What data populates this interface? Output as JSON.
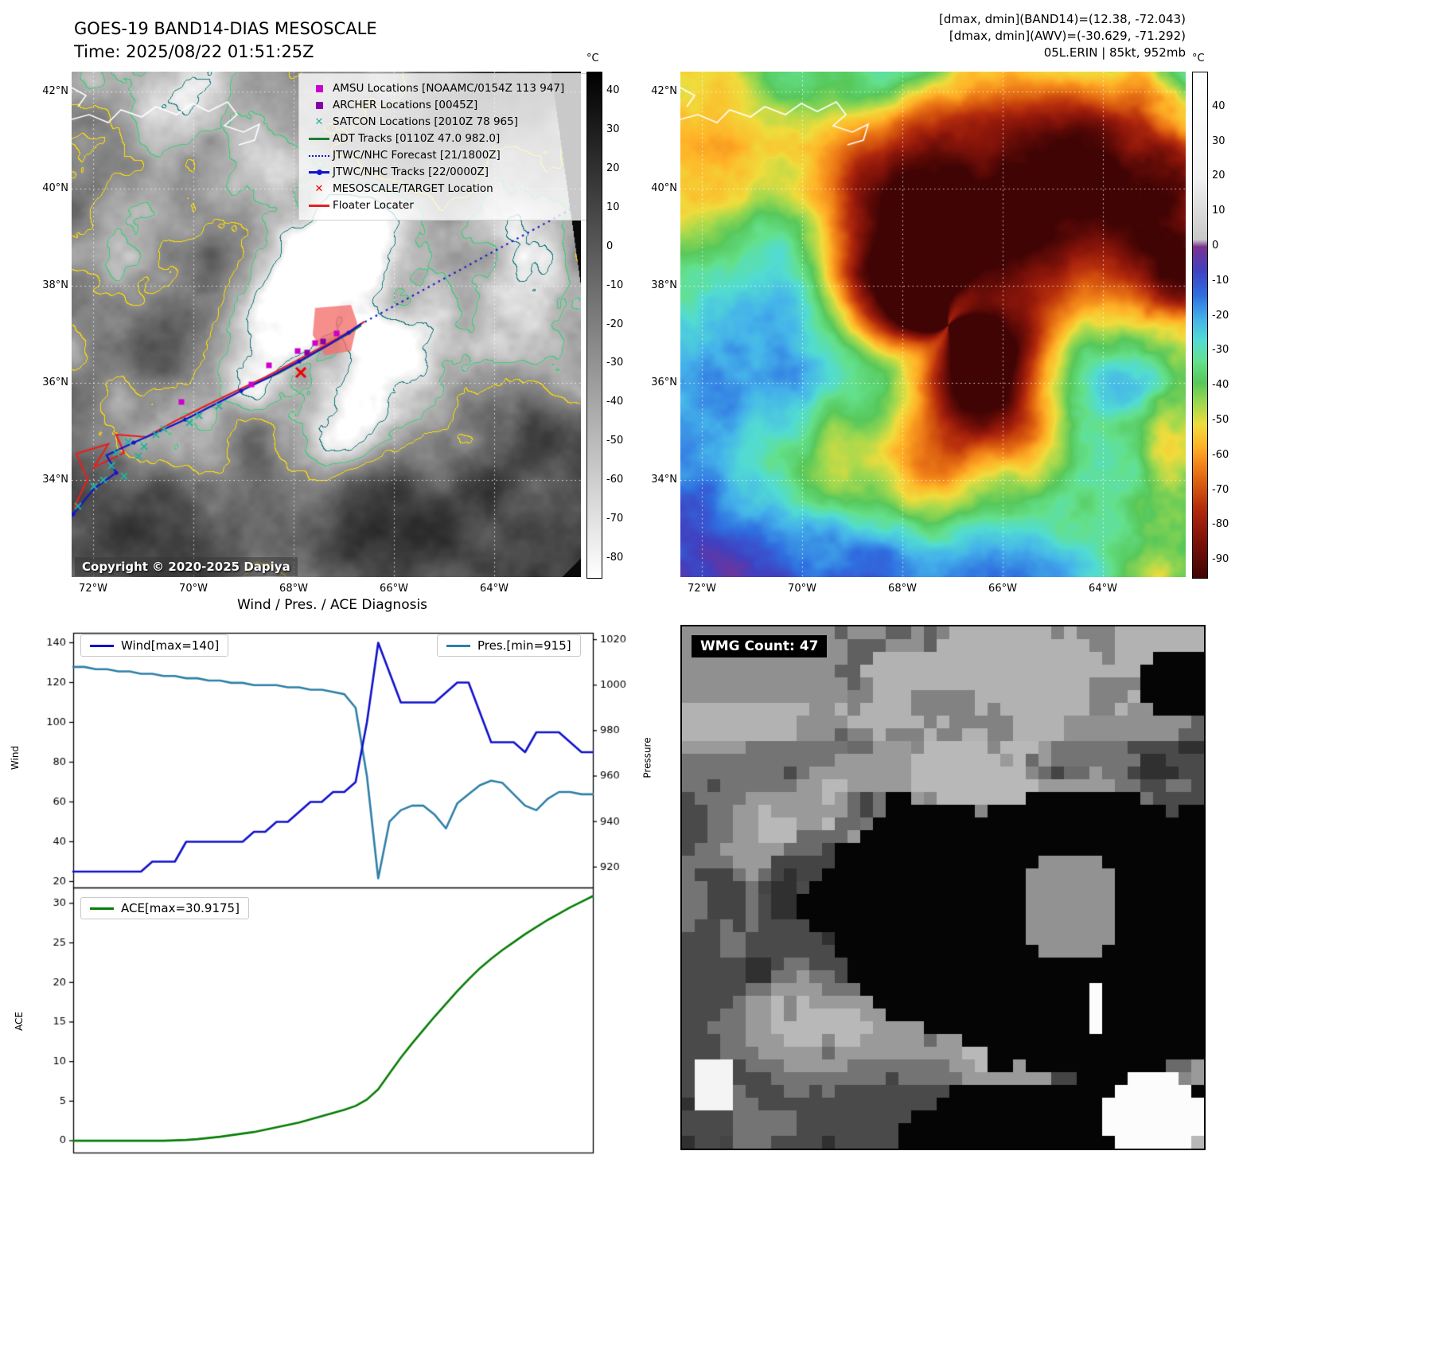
{
  "band14": {
    "title": "GOES-19 BAND14-DIAS MESOSCALE",
    "time_line": "Time: 2025/08/22 01:51:25Z",
    "copyright": "Copyright © 2020-2025 Dapiya",
    "colorbar": {
      "unit": "°C",
      "vmax": 45,
      "vmin": -85,
      "ticks": [
        40,
        30,
        20,
        10,
        0,
        -10,
        -20,
        -30,
        -40,
        -50,
        -60,
        -70,
        -80
      ],
      "gradient": [
        "#000000 0%",
        "#ffffff 100%"
      ]
    },
    "x_ticks": [
      "72°W",
      "70°W",
      "68°W",
      "66°W",
      "64°W"
    ],
    "y_ticks": [
      "42°N",
      "40°N",
      "38°N",
      "36°N",
      "34°N"
    ],
    "legend": [
      {
        "label": "AMSU Locations [NOAAMC/0154Z 113 947]",
        "marker": "square",
        "color": "#cc00cc"
      },
      {
        "label": "ARCHER Locations [0045Z]",
        "marker": "square",
        "color": "#8800aa"
      },
      {
        "label": "SATCON Locations [2010Z 78 965]",
        "marker": "x",
        "color": "#28b09c"
      },
      {
        "label": "ADT Tracks [0110Z 47.0 982.0]",
        "marker": "line",
        "color": "#1e7d32"
      },
      {
        "label": "JTWC/NHC Forecast [21/1800Z]",
        "marker": "dotted",
        "color": "#1515cc"
      },
      {
        "label": "JTWC/NHC Tracks [22/0000Z]",
        "marker": "line-dot",
        "color": "#1515cc"
      },
      {
        "label": "MESOSCALE/TARGET Location",
        "marker": "x",
        "color": "#ee0000"
      },
      {
        "label": "Floater Locater",
        "marker": "line",
        "color": "#e62020"
      }
    ]
  },
  "awv": {
    "header_lines": [
      "[dmax, dmin](BAND14)=(12.38, -72.043)",
      "[dmax, dmin](AWV)=(-30.629, -71.292)",
      "05L.ERIN | 85kt, 952mb"
    ],
    "colorbar": {
      "unit": "°C",
      "vmax": 50,
      "vmin": -95,
      "ticks": [
        40,
        30,
        20,
        10,
        0,
        -10,
        -20,
        -30,
        -40,
        -50,
        -60,
        -70,
        -80,
        -90
      ]
    },
    "palette": [
      [
        50,
        "#ffffff"
      ],
      [
        20,
        "#f2f2f2"
      ],
      [
        2,
        "#c8c8c8"
      ],
      [
        0,
        "#7a3190"
      ],
      [
        -7,
        "#4040c0"
      ],
      [
        -14,
        "#2f6fe0"
      ],
      [
        -21,
        "#45b4ea"
      ],
      [
        -27,
        "#52dcd2"
      ],
      [
        -33,
        "#64e08c"
      ],
      [
        -39,
        "#57c85a"
      ],
      [
        -45,
        "#9fd84f"
      ],
      [
        -51,
        "#f0dc3c"
      ],
      [
        -57,
        "#ffb428"
      ],
      [
        -63,
        "#f08018"
      ],
      [
        -69,
        "#d4540e"
      ],
      [
        -75,
        "#b42c0c"
      ],
      [
        -82,
        "#8c160a"
      ],
      [
        -90,
        "#5c0a06"
      ],
      [
        -95,
        "#400404"
      ]
    ],
    "x_ticks": [
      "72°W",
      "70°W",
      "68°W",
      "66°W",
      "64°W"
    ],
    "y_ticks": [
      "42°N",
      "40°N",
      "38°N",
      "36°N",
      "34°N"
    ]
  },
  "wmg": {
    "label": "WMG Count: 47"
  },
  "diagnosis": {
    "title": "Wind / Pres. / ACE Diagnosis",
    "wind_axis_label": "Wind",
    "pressure_axis_label": "Pressure",
    "ace_axis_label": "ACE"
  },
  "chart_data": [
    {
      "type": "line",
      "title": "Wind / Pres. / ACE Diagnosis",
      "x_count": 47,
      "series": [
        {
          "name": "Wind[max=140]",
          "axis": "left",
          "color": "#1010cc",
          "values": [
            25,
            25,
            25,
            25,
            25,
            25,
            25,
            30,
            30,
            30,
            40,
            40,
            40,
            40,
            40,
            40,
            45,
            45,
            50,
            50,
            55,
            60,
            60,
            65,
            65,
            70,
            100,
            140,
            125,
            110,
            110,
            110,
            110,
            115,
            120,
            120,
            105,
            90,
            90,
            90,
            85,
            95,
            95,
            95,
            90,
            85,
            85
          ]
        },
        {
          "name": "Pres.[min=915]",
          "axis": "right",
          "color": "#2e7fa8",
          "values": [
            1008,
            1008,
            1007,
            1007,
            1006,
            1006,
            1005,
            1005,
            1004,
            1004,
            1003,
            1003,
            1002,
            1002,
            1001,
            1001,
            1000,
            1000,
            1000,
            999,
            999,
            998,
            998,
            997,
            996,
            990,
            960,
            915,
            940,
            945,
            947,
            947,
            943,
            937,
            948,
            952,
            956,
            958,
            957,
            952,
            947,
            945,
            950,
            953,
            953,
            952,
            952
          ]
        }
      ],
      "left_axis": {
        "label": "Wind",
        "ticks": [
          20,
          40,
          60,
          80,
          100,
          120,
          140
        ],
        "range": [
          17,
          145
        ]
      },
      "right_axis": {
        "label": "Pressure",
        "ticks": [
          920,
          940,
          960,
          980,
          1000,
          1020
        ],
        "range": [
          911,
          1023
        ]
      },
      "legend_position": "upper-left and upper-right",
      "grid": false
    },
    {
      "type": "line",
      "title": "",
      "x_count": 47,
      "series": [
        {
          "name": "ACE[max=30.9175]",
          "axis": "left",
          "color": "#067d06",
          "values": [
            0,
            0,
            0,
            0,
            0,
            0,
            0,
            0,
            0,
            0.05,
            0.1,
            0.2,
            0.35,
            0.5,
            0.7,
            0.9,
            1.1,
            1.4,
            1.7,
            2.0,
            2.3,
            2.7,
            3.1,
            3.5,
            3.9,
            4.4,
            5.2,
            6.5,
            8.5,
            10.5,
            12.3,
            14.0,
            15.7,
            17.3,
            18.9,
            20.4,
            21.8,
            23.0,
            24.1,
            25.1,
            26.1,
            27.0,
            27.9,
            28.7,
            29.5,
            30.2,
            30.9175
          ]
        }
      ],
      "left_axis": {
        "label": "ACE",
        "ticks": [
          0,
          5,
          10,
          15,
          20,
          25,
          30
        ],
        "range": [
          -1.5,
          32
        ]
      },
      "legend_position": "upper-left",
      "grid": false
    }
  ]
}
